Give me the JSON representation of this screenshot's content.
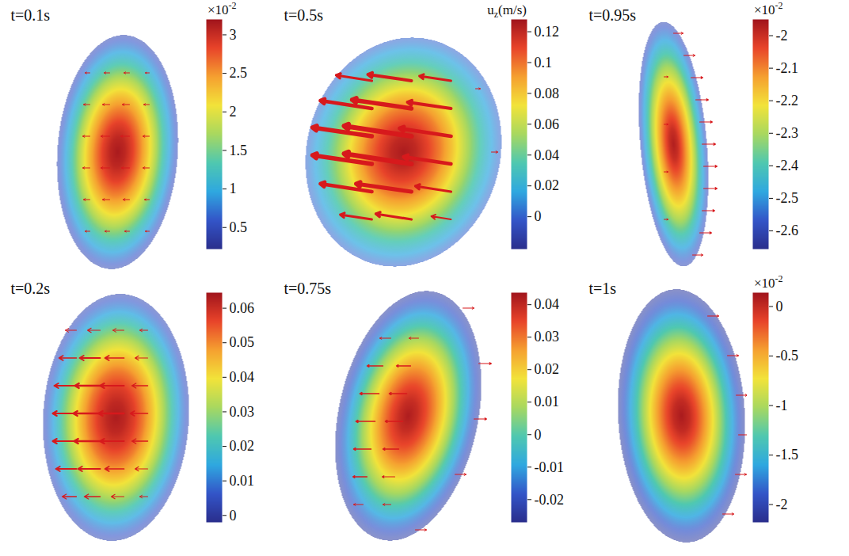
{
  "chart_data": [
    {
      "type": "heatmap",
      "title": "t=0.1s",
      "color": "#d7191c",
      "colorbar": {
        "lim": [
          0.22,
          3.2
        ],
        "ticks": [
          0.5,
          1,
          1.5,
          2,
          2.5,
          3
        ],
        "multiplier": {
          "base": "×10",
          "exponent": "-2"
        }
      },
      "field": [
        3.15,
        3.05,
        2.85,
        2.55,
        2.2,
        1.8,
        1.35,
        0.9,
        0.45
      ],
      "arrows": [
        [
          -20,
          -85,
          -6,
          0
        ],
        [
          5,
          -85,
          -7,
          0
        ],
        [
          30,
          -85,
          -7,
          0
        ],
        [
          55,
          -85,
          -5,
          0
        ],
        [
          -20,
          -45,
          -8,
          0
        ],
        [
          5,
          -45,
          -9,
          0
        ],
        [
          30,
          -45,
          -9,
          0
        ],
        [
          55,
          -45,
          -7,
          0
        ],
        [
          -20,
          -5,
          -9,
          0
        ],
        [
          5,
          -5,
          -11,
          0
        ],
        [
          30,
          -5,
          -11,
          0
        ],
        [
          55,
          -5,
          -8,
          0
        ],
        [
          -20,
          35,
          -9,
          0
        ],
        [
          5,
          35,
          -11,
          0
        ],
        [
          30,
          35,
          -10,
          0
        ],
        [
          55,
          35,
          -8,
          0
        ],
        [
          -20,
          75,
          -8,
          0
        ],
        [
          5,
          75,
          -9,
          0
        ],
        [
          30,
          75,
          -8,
          0
        ],
        [
          55,
          75,
          -6,
          0
        ],
        [
          -20,
          115,
          -6,
          0
        ],
        [
          5,
          115,
          -6,
          0
        ],
        [
          30,
          115,
          -6,
          0
        ],
        [
          55,
          115,
          -5,
          0
        ]
      ]
    },
    {
      "type": "heatmap",
      "title": "t=0.5s",
      "color": "#d7191c",
      "colorbar": {
        "lim": [
          -0.021,
          0.128
        ],
        "ticks": [
          0,
          0.02,
          0.04,
          0.06,
          0.08,
          0.1,
          0.12
        ],
        "title": {
          "base": "u",
          "subscript": "z",
          "rest": "(m/s)"
        }
      },
      "field": [
        0.125,
        0.12,
        0.11,
        0.097,
        0.08,
        0.06,
        0.04,
        0.02,
        0.0
      ],
      "arrows": [
        [
          -29,
          -75,
          -45,
          -7
        ],
        [
          21,
          -75,
          -55,
          -8
        ],
        [
          71,
          -75,
          -40,
          -6
        ],
        [
          -29,
          -40,
          -65,
          -10
        ],
        [
          21,
          -40,
          -75,
          -11
        ],
        [
          71,
          -40,
          -55,
          -8
        ],
        [
          -29,
          -5,
          -75,
          -11
        ],
        [
          21,
          -5,
          -85,
          -13
        ],
        [
          71,
          -5,
          -65,
          -10
        ],
        [
          -29,
          30,
          -75,
          -11
        ],
        [
          21,
          30,
          -85,
          -13
        ],
        [
          71,
          30,
          -60,
          -9
        ],
        [
          -29,
          65,
          -65,
          -10
        ],
        [
          21,
          65,
          -70,
          -10
        ],
        [
          71,
          65,
          -45,
          -7
        ],
        [
          -29,
          100,
          -40,
          -6
        ],
        [
          21,
          100,
          -45,
          -7
        ],
        [
          71,
          100,
          -25,
          -4
        ],
        [
          122,
          15,
          8,
          0
        ],
        [
          102,
          -65,
          6,
          0
        ]
      ]
    },
    {
      "type": "heatmap",
      "title": "t=0.95s",
      "color": "#d7191c",
      "colorbar": {
        "lim": [
          -2.656,
          -1.95
        ],
        "ticks": [
          -2.6,
          -2.5,
          -2.4,
          -2.3,
          -2.2,
          -2.1,
          -2
        ],
        "multiplier": {
          "base": "×10",
          "exponent": "-2"
        }
      },
      "field": [
        -1.97,
        -2.0,
        -2.06,
        -2.13,
        -2.21,
        -2.3,
        -2.4,
        -2.5,
        -2.6
      ],
      "arrows": [
        [
          7,
          -135,
          12,
          0
        ],
        [
          20,
          -107,
          14,
          0
        ],
        [
          29,
          -79,
          15,
          0
        ],
        [
          35,
          -51,
          16,
          0
        ],
        [
          40,
          -23,
          16,
          0
        ],
        [
          43,
          5,
          17,
          0
        ],
        [
          45,
          33,
          17,
          0
        ],
        [
          45,
          61,
          17,
          0
        ],
        [
          43,
          89,
          16,
          0
        ],
        [
          40,
          117,
          15,
          0
        ],
        [
          31,
          145,
          13,
          0
        ],
        [
          -5,
          -80,
          5,
          0
        ],
        [
          -5,
          -20,
          5,
          0
        ],
        [
          -5,
          40,
          5,
          0
        ],
        [
          -5,
          100,
          5,
          0
        ]
      ]
    },
    {
      "type": "heatmap",
      "title": "t=0.2s",
      "color": "#d7191c",
      "colorbar": {
        "lim": [
          -0.002,
          0.0645
        ],
        "ticks": [
          0,
          0.01,
          0.02,
          0.03,
          0.04,
          0.05,
          0.06
        ]
      },
      "field": [
        0.063,
        0.061,
        0.057,
        0.051,
        0.043,
        0.034,
        0.024,
        0.013,
        0.003
      ],
      "arrows": [
        [
          -37,
          -105,
          -14,
          0
        ],
        [
          -7,
          -105,
          -16,
          0
        ],
        [
          23,
          -105,
          -14,
          0
        ],
        [
          53,
          -105,
          -10,
          0
        ],
        [
          -37,
          -70,
          -22,
          0
        ],
        [
          -7,
          -70,
          -26,
          0
        ],
        [
          23,
          -70,
          -24,
          0
        ],
        [
          53,
          -70,
          -16,
          0
        ],
        [
          -37,
          -35,
          -28,
          0
        ],
        [
          -7,
          -35,
          -32,
          0
        ],
        [
          23,
          -35,
          -30,
          0
        ],
        [
          53,
          -35,
          -20,
          0
        ],
        [
          -37,
          0,
          -30,
          0
        ],
        [
          -7,
          0,
          -34,
          0
        ],
        [
          23,
          0,
          -32,
          0
        ],
        [
          53,
          0,
          -22,
          0
        ],
        [
          -37,
          35,
          -30,
          0
        ],
        [
          -7,
          35,
          -33,
          0
        ],
        [
          23,
          35,
          -30,
          0
        ],
        [
          53,
          35,
          -20,
          0
        ],
        [
          -37,
          70,
          -26,
          0
        ],
        [
          -7,
          70,
          -28,
          0
        ],
        [
          23,
          70,
          -24,
          0
        ],
        [
          53,
          70,
          -16,
          0
        ],
        [
          -37,
          105,
          -18,
          0
        ],
        [
          -7,
          105,
          -20,
          0
        ],
        [
          23,
          105,
          -16,
          0
        ],
        [
          53,
          105,
          -10,
          0
        ]
      ]
    },
    {
      "type": "heatmap",
      "title": "t=0.75s",
      "color": "#d7191c",
      "colorbar": {
        "lim": [
          -0.027,
          0.0437
        ],
        "ticks": [
          -0.02,
          -0.01,
          0,
          0.01,
          0.02,
          0.03,
          0.04
        ]
      },
      "field": [
        0.042,
        0.039,
        0.034,
        0.027,
        0.018,
        0.008,
        -0.003,
        -0.014,
        -0.024
      ],
      "arrows": [
        [
          -5,
          -95,
          -14,
          0
        ],
        [
          30,
          -95,
          -12,
          0
        ],
        [
          -15,
          -60,
          -20,
          0
        ],
        [
          20,
          -60,
          -18,
          0
        ],
        [
          -20,
          -25,
          -24,
          0
        ],
        [
          15,
          -25,
          -22,
          0
        ],
        [
          -25,
          10,
          -24,
          0
        ],
        [
          10,
          10,
          -22,
          0
        ],
        [
          -30,
          45,
          -22,
          0
        ],
        [
          5,
          45,
          -20,
          0
        ],
        [
          -35,
          80,
          -18,
          0
        ],
        [
          0,
          80,
          -16,
          0
        ],
        [
          -40,
          115,
          -12,
          0
        ],
        [
          -5,
          115,
          -10,
          0
        ],
        [
          86,
          -133,
          14,
          0
        ],
        [
          106,
          -63,
          16,
          0
        ],
        [
          100,
          7,
          16,
          0
        ],
        [
          76,
          77,
          14,
          0
        ],
        [
          26,
          147,
          14,
          0
        ]
      ]
    },
    {
      "type": "heatmap",
      "title": "t=1s",
      "color": "#d7191c",
      "colorbar": {
        "lim": [
          -2.18,
          0.14
        ],
        "ticks": [
          -2,
          -1.5,
          -1,
          -0.5,
          0
        ],
        "multiplier": {
          "base": "×10",
          "exponent": "-2"
        }
      },
      "field": [
        0.1,
        0.0,
        -0.2,
        -0.45,
        -0.75,
        -1.1,
        -1.45,
        -1.8,
        -2.1
      ],
      "arrows": [
        [
          50,
          -123,
          14,
          0
        ],
        [
          75,
          -73,
          14,
          0
        ],
        [
          86,
          -23,
          14,
          0
        ],
        [
          89,
          27,
          14,
          0
        ],
        [
          85,
          77,
          14,
          0
        ],
        [
          69,
          127,
          14,
          0
        ]
      ]
    }
  ]
}
